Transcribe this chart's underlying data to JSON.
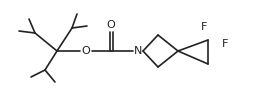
{
  "bg_color": "#ffffff",
  "line_color": "#222222",
  "line_width": 1.2,
  "font_size": 7.5,
  "figsize": [
    2.8,
    1.02
  ],
  "dpi": 100,
  "xlim": [
    0,
    280
  ],
  "ylim": [
    0,
    102
  ]
}
